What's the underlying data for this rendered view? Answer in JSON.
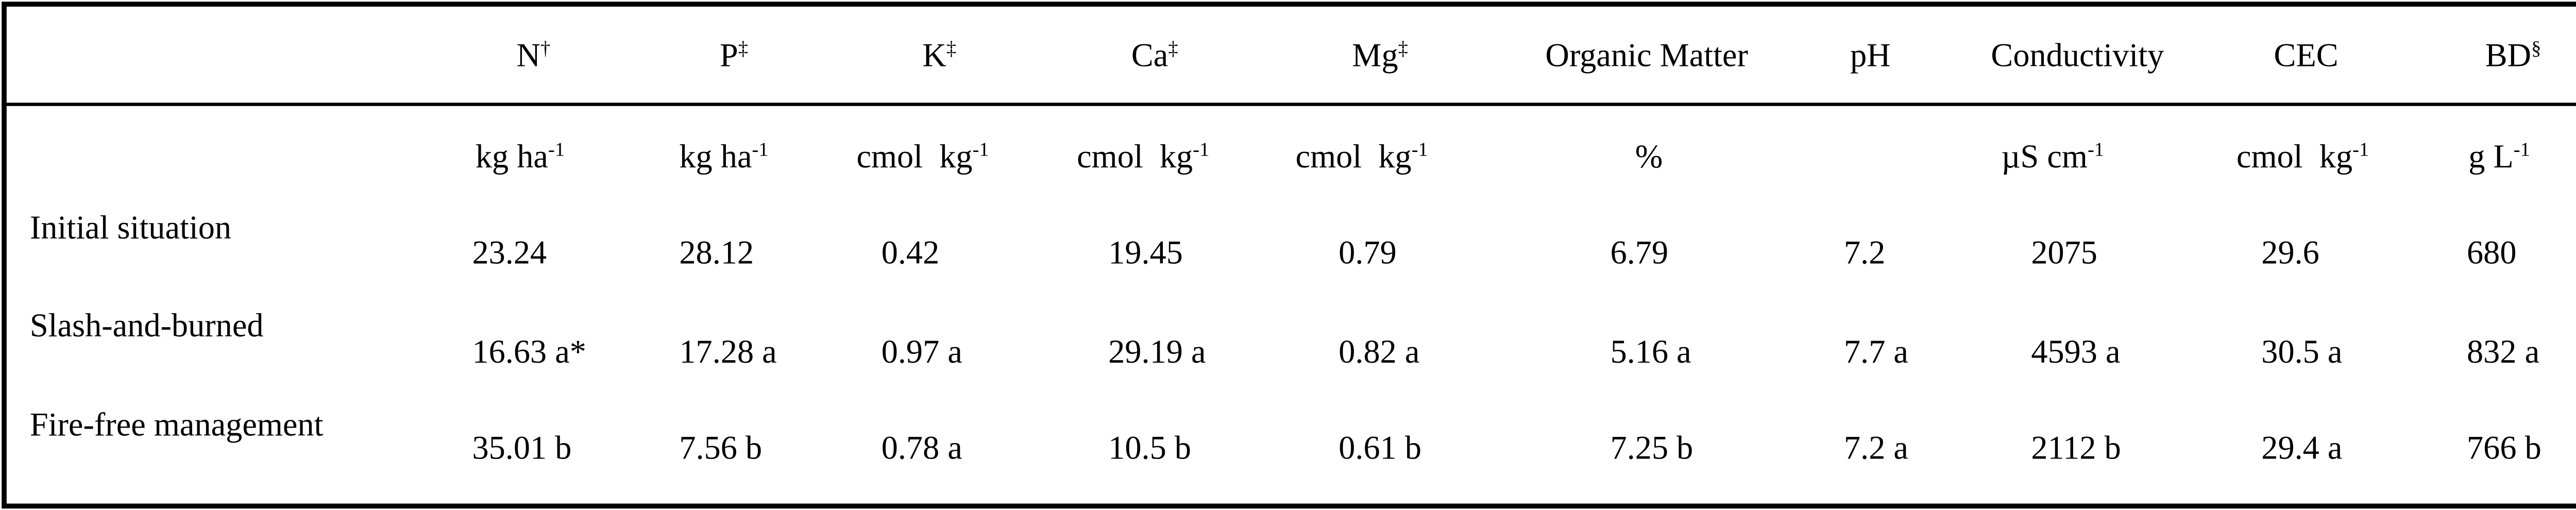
{
  "table": {
    "columns": [
      {
        "label": "N",
        "mark": "†"
      },
      {
        "label": "P",
        "mark": "‡"
      },
      {
        "label": "K",
        "mark": "‡"
      },
      {
        "label": "Ca",
        "mark": "‡"
      },
      {
        "label": "Mg",
        "mark": "‡"
      },
      {
        "label": "Organic Matter"
      },
      {
        "label": "pH"
      },
      {
        "label": "Conductivity"
      },
      {
        "label": "CEC"
      },
      {
        "label": "BD",
        "mark": "§"
      }
    ],
    "units": [
      {
        "text": "kg ha",
        "sup": "-1"
      },
      {
        "text": "kg ha",
        "sup": "-1"
      },
      {
        "text": "cmol  kg",
        "sup": "-1"
      },
      {
        "text": "cmol  kg",
        "sup": "-1"
      },
      {
        "text": "cmol  kg",
        "sup": "-1"
      },
      {
        "text": "%"
      },
      null,
      {
        "text": "µS cm",
        "sup": "-1"
      },
      {
        "text": "cmol  kg",
        "sup": "-1"
      },
      {
        "text": "g L",
        "sup": "-1"
      }
    ],
    "rows": [
      {
        "label": "Initial situation",
        "cells": [
          "23.24",
          "28.12",
          "0.42",
          "19.45",
          "0.79",
          "6.79",
          "7.2",
          "2075",
          "29.6",
          "680"
        ]
      },
      {
        "label": "Slash-and-burned",
        "cells": [
          "16.63 a*",
          "17.28 a",
          "0.97 a",
          "29.19 a",
          "0.82 a",
          "5.16 a",
          "7.7 a",
          "4593 a",
          "30.5 a",
          "832 a"
        ]
      },
      {
        "label": "Fire-free management",
        "cells": [
          "35.01 b",
          "7.56 b",
          "0.78 a",
          "10.5 b",
          "0.61 b",
          "7.25 b",
          "7.2 a",
          "2112 b",
          "29.4 a",
          "766 b"
        ]
      }
    ]
  }
}
